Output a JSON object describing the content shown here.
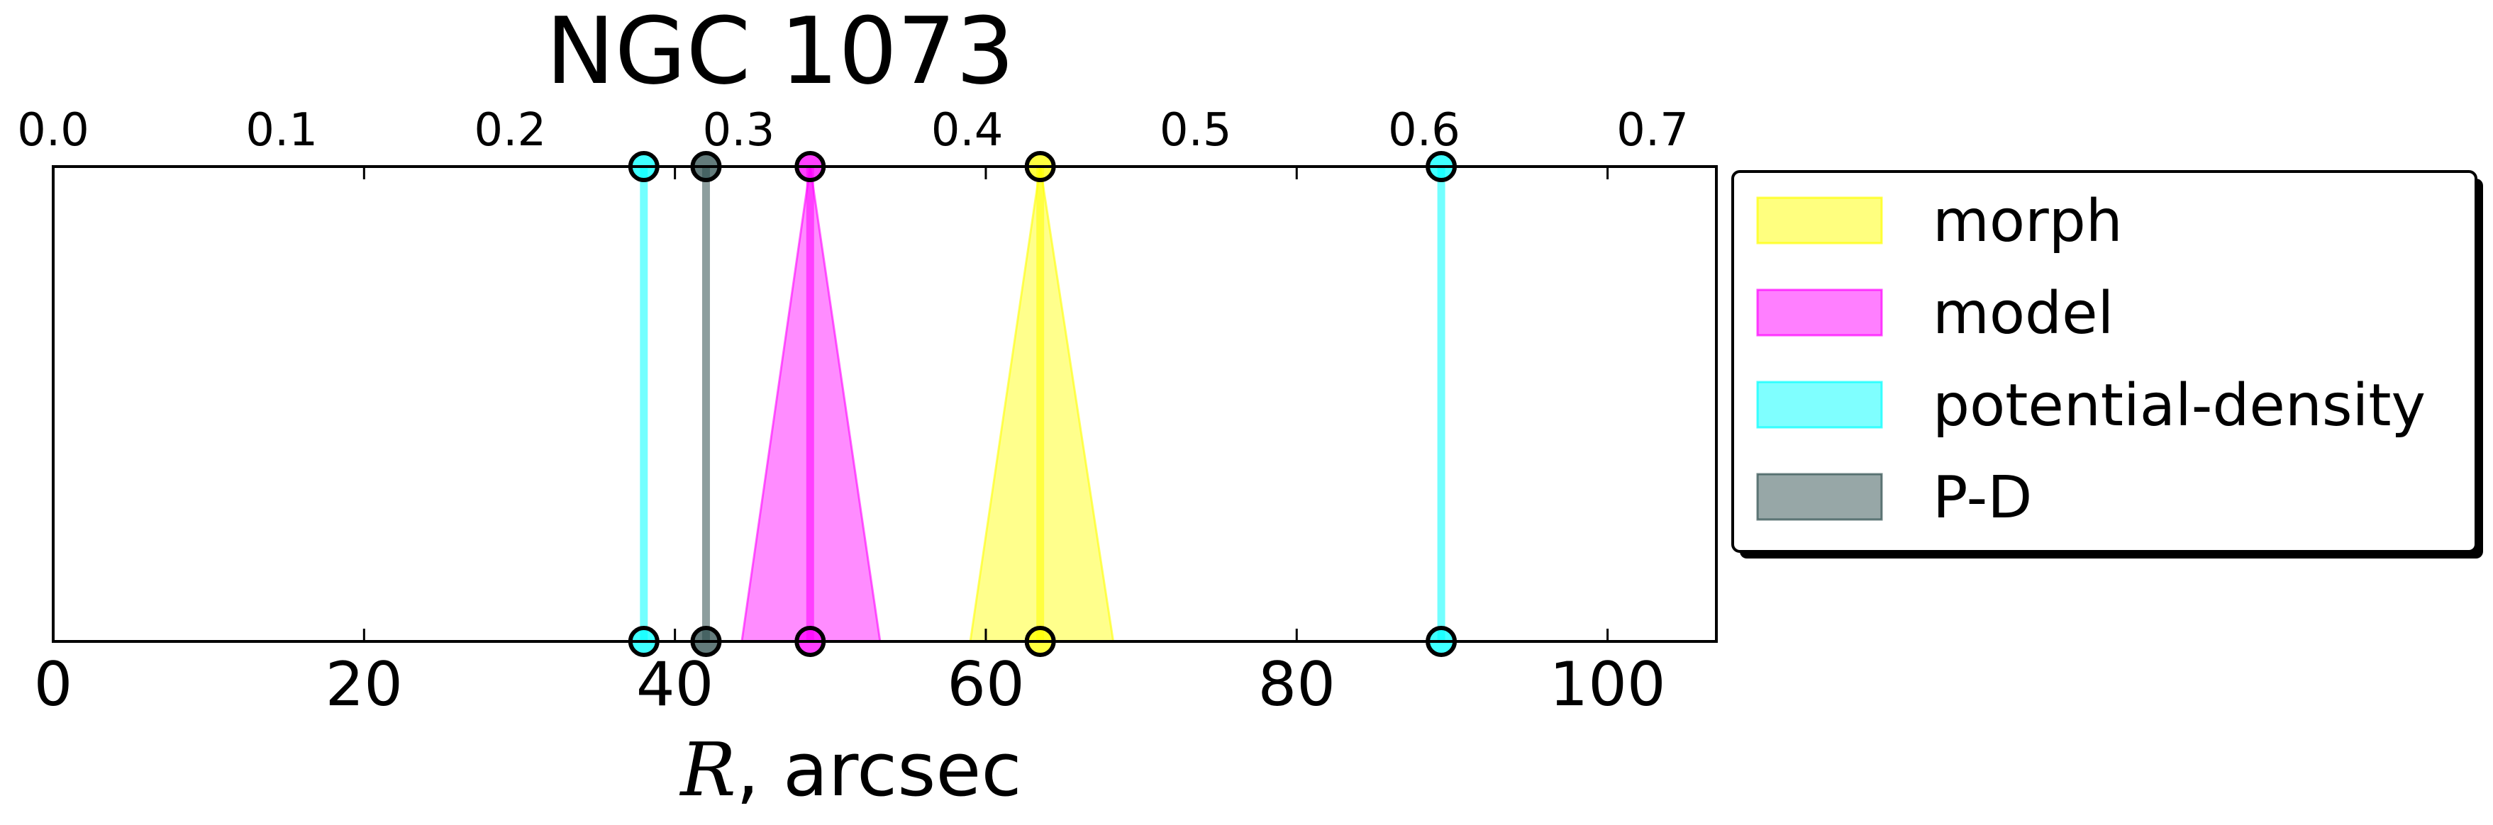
{
  "chart_data": {
    "type": "line",
    "title": "NGC 1073",
    "xlabel": "R, arcsec",
    "xlabel_italic_part": "R",
    "xlabel_rest": ", arcsec",
    "xlim": [
      0,
      107
    ],
    "x_ticks": [
      0,
      20,
      40,
      60,
      80,
      100
    ],
    "x_tick_labels": [
      "0",
      "20",
      "40",
      "60",
      "80",
      "100"
    ],
    "top_x_ticks": [
      0.0,
      0.1,
      0.2,
      0.3,
      0.4,
      0.5,
      0.6,
      0.7
    ],
    "top_x_tick_labels": [
      "0.0",
      "0.1",
      "0.2",
      "0.3",
      "0.4",
      "0.5",
      "0.6",
      "0.7"
    ],
    "top_axis_scale_per_arcsec": 0.006803,
    "grid": false,
    "legend_position": "outside-right",
    "legend": [
      {
        "key": "morph",
        "label": "morph",
        "color": "#ffff00"
      },
      {
        "key": "model",
        "label": "model",
        "color": "#ff00ff"
      },
      {
        "key": "potential-density",
        "label": "potential-density",
        "color": "#00ffff"
      },
      {
        "key": "pd",
        "label": "P-D",
        "color": "#2f4f4f"
      }
    ],
    "series": [
      {
        "key": "potential-density",
        "x": 38.0,
        "lower": 38.0,
        "upper": 38.0,
        "color": "#00ffff"
      },
      {
        "key": "pd",
        "x": 42.0,
        "lower": 42.0,
        "upper": 42.0,
        "color": "#2f4f4f"
      },
      {
        "key": "model",
        "x": 48.7,
        "lower": 44.3,
        "upper": 53.2,
        "color": "#ff00ff"
      },
      {
        "key": "morph",
        "x": 63.5,
        "lower": 59.0,
        "upper": 68.2,
        "color": "#ffff00"
      },
      {
        "key": "potential-density",
        "x": 89.3,
        "lower": 89.3,
        "upper": 89.3,
        "color": "#00ffff"
      }
    ]
  }
}
